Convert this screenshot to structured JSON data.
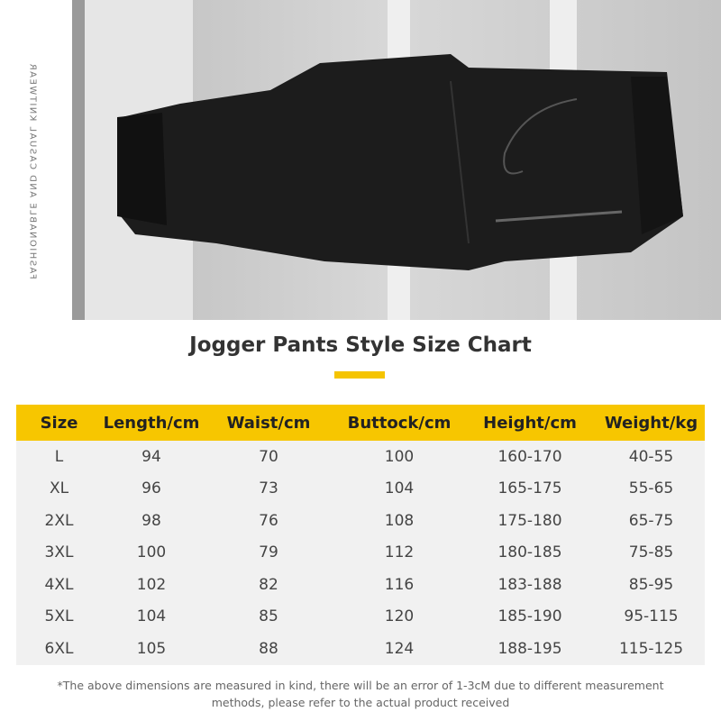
{
  "photo": {
    "side_text": "FASHIONABLE AND CASUAL KNITWEAR",
    "accent_color": "#f7c600"
  },
  "title": "Jogger Pants Style Size Chart",
  "table": {
    "headers": [
      "Size",
      "Length/cm",
      "Waist/cm",
      "Buttock/cm",
      "Height/cm",
      "Weight/kg"
    ],
    "rows": [
      [
        "L",
        "94",
        "70",
        "100",
        "160-170",
        "40-55"
      ],
      [
        "XL",
        "96",
        "73",
        "104",
        "165-175",
        "55-65"
      ],
      [
        "2XL",
        "98",
        "76",
        "108",
        "175-180",
        "65-75"
      ],
      [
        "3XL",
        "100",
        "79",
        "112",
        "180-185",
        "75-85"
      ],
      [
        "4XL",
        "102",
        "82",
        "116",
        "183-188",
        "85-95"
      ],
      [
        "5XL",
        "104",
        "85",
        "120",
        "185-190",
        "95-115"
      ],
      [
        "6XL",
        "105",
        "88",
        "124",
        "188-195",
        "115-125"
      ]
    ]
  },
  "note": "*The above dimensions are measured in kind, there will be an error of 1-3cM due to different measurement methods, please refer to the actual product received"
}
